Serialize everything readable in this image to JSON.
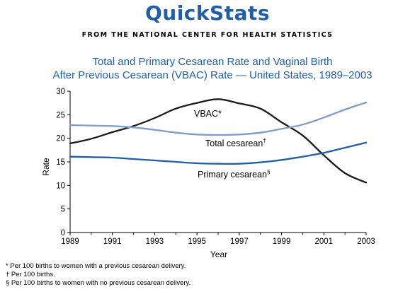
{
  "header": {
    "brand": "QuickStats",
    "source": "FROM THE NATIONAL CENTER FOR HEALTH STATISTICS"
  },
  "chart_data": {
    "type": "line",
    "title": "Total and Primary Cesarean Rate and Vaginal Birth After Previous Cesarean (VBAC) Rate — United States, 1989–2003",
    "title_lines": [
      "Total and Primary Cesarean Rate and Vaginal Birth",
      "After Previous Cesarean (VBAC) Rate — United States, 1989–2003"
    ],
    "xlabel": "Year",
    "ylabel": "Rate",
    "xlim": [
      1989,
      2003
    ],
    "ylim": [
      0,
      30
    ],
    "xticks": [
      1989,
      1991,
      1993,
      1995,
      1997,
      1999,
      2001,
      2003
    ],
    "yticks": [
      0,
      5,
      10,
      15,
      20,
      25,
      30
    ],
    "grid": false,
    "legend": "inline labels",
    "x": [
      1989,
      1990,
      1991,
      1992,
      1993,
      1994,
      1995,
      1996,
      1997,
      1998,
      1999,
      2000,
      2001,
      2002,
      2003
    ],
    "series": [
      {
        "name": "VBAC",
        "label": "VBAC*",
        "color": "#1a1a1a",
        "values": [
          18.9,
          19.9,
          21.3,
          22.6,
          24.3,
          26.3,
          27.5,
          28.3,
          27.4,
          26.3,
          23.4,
          20.6,
          16.4,
          12.6,
          10.6
        ]
      },
      {
        "name": "Total cesarean",
        "label": "Total cesarean",
        "label_mark": "†",
        "color": "#7f9ccb",
        "values": [
          22.8,
          22.7,
          22.6,
          22.3,
          21.8,
          21.2,
          20.8,
          20.7,
          20.8,
          21.2,
          22.0,
          22.9,
          24.4,
          26.1,
          27.6
        ]
      },
      {
        "name": "Primary cesarean",
        "label": "Primary cesarean",
        "label_mark": "§",
        "color": "#1f5ea8",
        "values": [
          16.1,
          16.0,
          15.9,
          15.6,
          15.3,
          15.0,
          14.7,
          14.6,
          14.6,
          14.9,
          15.4,
          16.1,
          16.9,
          18.0,
          19.1
        ]
      }
    ]
  },
  "footnotes": [
    "* Per 100 births to women with a previous cesarean delivery.",
    "† Per 100 births.",
    "§ Per 100 births to women with no previous cesarean delivery."
  ]
}
